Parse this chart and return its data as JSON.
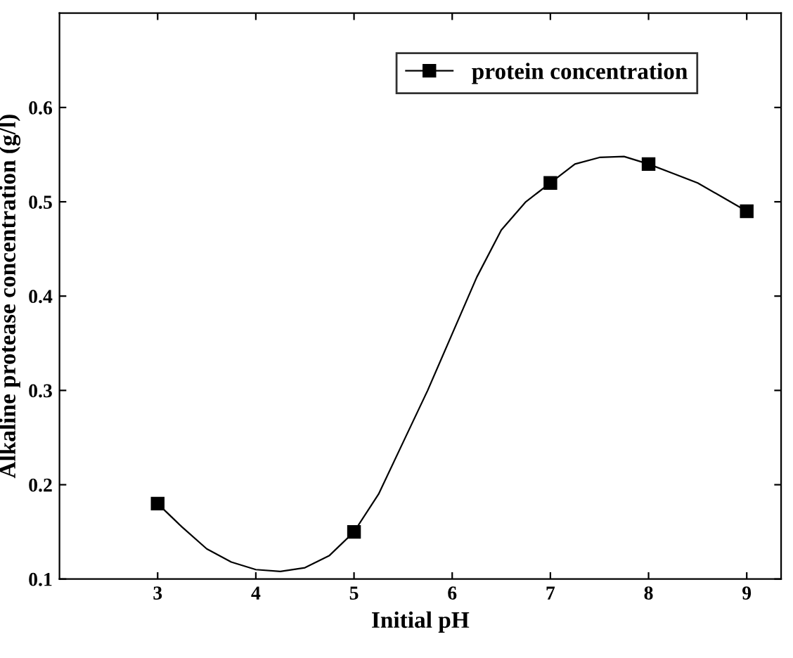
{
  "chart_data": {
    "type": "scatter",
    "xlabel": "Initial pH",
    "ylabel": "Alkaline protease concentration (g/l)",
    "x": [
      3,
      5,
      7,
      8,
      9
    ],
    "series": [
      {
        "name": "protein concentration",
        "color": "#000000",
        "values": [
          0.18,
          0.15,
          0.52,
          0.54,
          0.49
        ]
      },
      {
        "type": "line",
        "marker": "none",
        "color": "#000000",
        "x": [
          3,
          3.25,
          3.5,
          3.75,
          4,
          4.25,
          4.5,
          4.75,
          5,
          5.25,
          5.5,
          5.75,
          6,
          6.25,
          6.5,
          6.75,
          7,
          7.25,
          7.5,
          7.75,
          8,
          8.25,
          8.5,
          8.75,
          9
        ],
        "values": [
          0.18,
          0.155,
          0.132,
          0.118,
          0.11,
          0.108,
          0.112,
          0.125,
          0.15,
          0.19,
          0.245,
          0.3,
          0.36,
          0.42,
          0.47,
          0.5,
          0.52,
          0.54,
          0.547,
          0.548,
          0.54,
          0.53,
          0.52,
          0.505,
          0.49
        ]
      }
    ],
    "marker": "square",
    "line_style": "solid",
    "legend": "top right",
    "grid": false,
    "xlim": [
      2,
      9.35
    ],
    "xticks": [
      3,
      4,
      5,
      6,
      7,
      8,
      9
    ],
    "ylim": [
      0.1,
      0.7
    ],
    "yticks": [
      0.1,
      0.2,
      0.3,
      0.4,
      0.5,
      0.6
    ]
  }
}
